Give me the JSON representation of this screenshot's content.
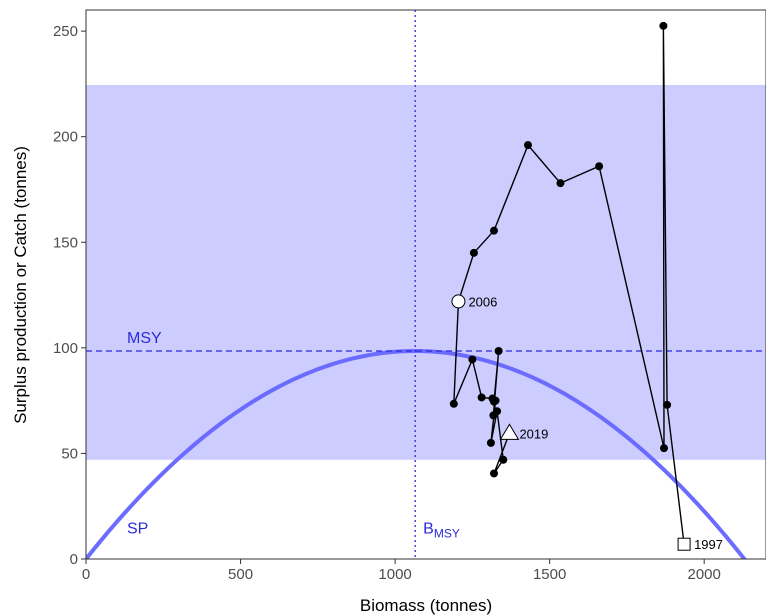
{
  "chart_data": {
    "type": "scatter",
    "xlabel": "Biomass (tonnes)",
    "ylabel": "Surplus production or Catch (tonnes)",
    "xlim": [
      0,
      2200
    ],
    "ylim": [
      0,
      260
    ],
    "x_ticks": [
      0,
      500,
      1000,
      1500,
      2000
    ],
    "y_ticks": [
      0,
      50,
      100,
      150,
      200,
      250
    ],
    "grid": false,
    "colors": {
      "band": "#ccccff",
      "sp_curve": "#6b6bff",
      "reference": "#2b2bd9",
      "trajectory": "#000000"
    },
    "msy": {
      "label": "MSY",
      "value": 98.5
    },
    "bmsy": {
      "label": "B",
      "subscript": "MSY",
      "value": 1065
    },
    "catch_band": {
      "lower": 47,
      "upper": 224.5
    },
    "sp_curve": {
      "label": "SP",
      "rmax_x": 1065,
      "max_y": 98.5
    },
    "trajectory": {
      "x": [
        1935,
        1880,
        1868,
        1870,
        1660,
        1535,
        1430,
        1320,
        1255,
        1205,
        1190,
        1250,
        1280,
        1315,
        1320,
        1335,
        1318,
        1325,
        1310,
        1330,
        1350,
        1320,
        1370
      ],
      "y": [
        7,
        73,
        252.5,
        52.5,
        186,
        178,
        196,
        155.5,
        145,
        122,
        73.5,
        94.5,
        76.5,
        76,
        74.5,
        98.5,
        68,
        75,
        55,
        70,
        47,
        40.5,
        59.5
      ]
    },
    "markers": [
      {
        "year": "1997",
        "shape": "square",
        "x": 1935,
        "y": 7
      },
      {
        "year": "2006",
        "shape": "circle",
        "x": 1205,
        "y": 122
      },
      {
        "year": "2019",
        "shape": "triangle",
        "x": 1370,
        "y": 59.5
      }
    ]
  }
}
